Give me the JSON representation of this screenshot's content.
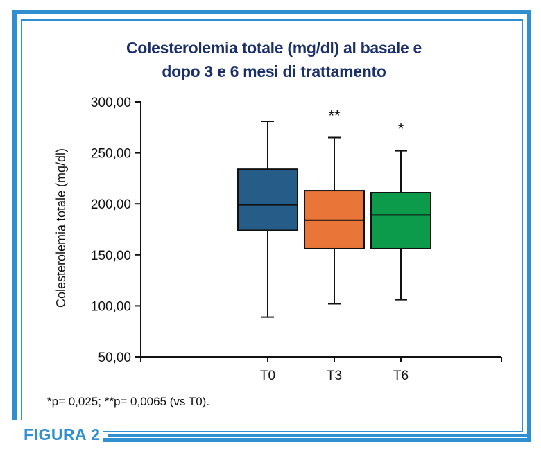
{
  "figure_label": "FIGURA 2",
  "footnote": "*p= 0,025; **p= 0,0065 (vs T0).",
  "colors": {
    "frame": "#2f8fd0",
    "title": "#1a2f6b"
  },
  "chart_data": {
    "type": "box",
    "title_line1": "Colesterolemia totale (mg/dl) al basale e",
    "title_line2": "dopo 3 e 6 mesi di trattamento",
    "ylabel": "Colesterolemia totale (mg/dl)",
    "xlabel": "",
    "ylim": [
      50,
      300
    ],
    "yticks": [
      50,
      100,
      150,
      200,
      250,
      300
    ],
    "ytick_labels": [
      "50,00",
      "100,00",
      "150,00",
      "200,00",
      "250,00",
      "300,00"
    ],
    "categories": [
      "T0",
      "T3",
      "T6"
    ],
    "boxes": [
      {
        "label": "T0",
        "min": 89,
        "q1": 174,
        "median": 199,
        "q3": 234,
        "max": 281,
        "color": "#255d88",
        "annotation": ""
      },
      {
        "label": "T3",
        "min": 102,
        "q1": 156,
        "median": 184,
        "q3": 213,
        "max": 265,
        "color": "#ea7538",
        "annotation": "**"
      },
      {
        "label": "T6",
        "min": 106,
        "q1": 156,
        "median": 189,
        "q3": 211,
        "max": 252,
        "color": "#0b9b4b",
        "annotation": "*"
      }
    ]
  }
}
